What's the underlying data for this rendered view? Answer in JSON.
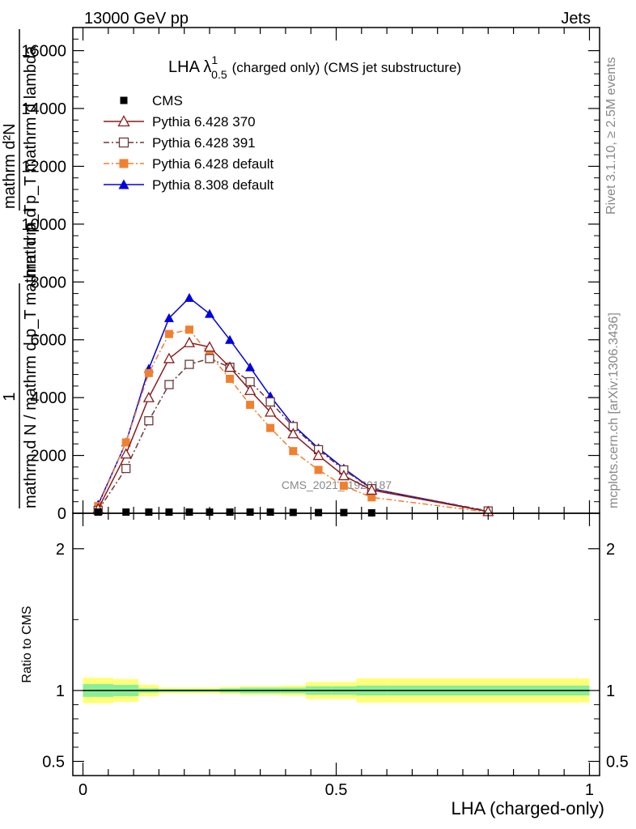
{
  "header": {
    "left": "13000 GeV pp",
    "right": "Jets",
    "side_top": "Rivet 3.1.10, ≥ 2.5M events",
    "side_bottom": "mcplots.cern.ch [arXiv:1306.3436]",
    "watermark": "CMS_2021_I1920187"
  },
  "chart_data": [
    {
      "type": "line",
      "panel": "main",
      "title_main": "LHA λ",
      "title_sup": "1",
      "title_sub": "0.5",
      "title_rest": "(charged only) (CMS jet substructure)",
      "xlabel": "LHA (charged-only)",
      "ylabel_num": "1",
      "ylabel_den": "mathrm d N / mathrm d p_T mathrm d p_T",
      "ylabel_right_num": "mathrm d²N",
      "ylabel_right_den": "mathrm d p_T mathrm d lambda",
      "xlim": [
        -0.02,
        1.02
      ],
      "ylim": [
        0,
        16800
      ],
      "y_ticks": [
        0,
        2000,
        4000,
        6000,
        8000,
        10000,
        12000,
        14000,
        16000
      ],
      "y_tick_labels": [
        "0",
        "2000",
        "4000",
        "6000",
        "8000",
        "10000",
        "12000",
        "14000",
        "16000"
      ],
      "legend_position": "top-left",
      "series": [
        {
          "name": "CMS",
          "color": "#000000",
          "marker": "square-filled",
          "dash": "none",
          "x": [
            0.03,
            0.085,
            0.13,
            0.17,
            0.21,
            0.25,
            0.29,
            0.33,
            0.37,
            0.415,
            0.465,
            0.515,
            0.57
          ],
          "y": [
            40,
            40,
            40,
            40,
            40,
            40,
            40,
            40,
            40,
            30,
            25,
            25,
            15
          ]
        },
        {
          "name": "Pythia 6.428 370",
          "color": "#8b1a1a",
          "marker": "triangle-open",
          "dash": "none",
          "x": [
            0.03,
            0.085,
            0.13,
            0.17,
            0.21,
            0.25,
            0.29,
            0.33,
            0.37,
            0.415,
            0.465,
            0.515,
            0.57,
            0.8
          ],
          "y": [
            150,
            2050,
            4000,
            5350,
            5900,
            5750,
            5050,
            4250,
            3500,
            2750,
            2000,
            1300,
            800,
            60
          ]
        },
        {
          "name": "Pythia 6.428 391",
          "color": "#6b3a3a",
          "marker": "square-open",
          "dash": "dashdot",
          "x": [
            0.03,
            0.085,
            0.13,
            0.17,
            0.21,
            0.25,
            0.29,
            0.33,
            0.37,
            0.415,
            0.465,
            0.515,
            0.57,
            0.8
          ],
          "y": [
            100,
            1550,
            3200,
            4450,
            5150,
            5350,
            5050,
            4550,
            3850,
            3000,
            2200,
            1500,
            850,
            80
          ]
        },
        {
          "name": "Pythia 6.428 default",
          "color": "#f08030",
          "marker": "square-filled",
          "dash": "dashdot",
          "x": [
            0.03,
            0.085,
            0.13,
            0.17,
            0.21,
            0.25,
            0.29,
            0.33,
            0.37,
            0.415,
            0.465,
            0.515,
            0.57,
            0.8
          ],
          "y": [
            250,
            2450,
            4850,
            6200,
            6350,
            5500,
            4650,
            3750,
            2950,
            2150,
            1500,
            950,
            550,
            40
          ]
        },
        {
          "name": "Pythia 8.308 default",
          "color": "#0000dd",
          "marker": "triangle-filled",
          "dash": "none",
          "x": [
            0.03,
            0.085,
            0.13,
            0.17,
            0.21,
            0.25,
            0.29,
            0.33,
            0.37,
            0.415,
            0.465,
            0.515,
            0.57,
            0.8
          ],
          "y": [
            300,
            2450,
            5000,
            6750,
            7450,
            6900,
            6000,
            5050,
            4050,
            3050,
            2250,
            1550,
            850,
            60
          ]
        }
      ]
    },
    {
      "type": "band",
      "panel": "ratio",
      "ylabel": "Ratio to CMS",
      "xlim": [
        -0.02,
        1.02
      ],
      "ylim": [
        0.4,
        2.25
      ],
      "y_ticks": [
        0.5,
        1,
        2
      ],
      "y_tick_labels": [
        "0.5",
        "1",
        "2"
      ],
      "x_ticks": [
        0,
        0.5,
        1
      ],
      "x_tick_labels": [
        "0",
        "0.5",
        "1"
      ],
      "reference": 1,
      "bins": [
        0,
        0.06,
        0.11,
        0.15,
        0.19,
        0.23,
        0.27,
        0.31,
        0.35,
        0.39,
        0.44,
        0.49,
        0.54,
        0.6,
        1.0
      ],
      "inner": [
        0.045,
        0.04,
        0.015,
        0.01,
        0.01,
        0.01,
        0.015,
        0.02,
        0.02,
        0.02,
        0.03,
        0.03,
        0.035,
        0.035
      ],
      "outer": [
        0.09,
        0.08,
        0.04,
        0.02,
        0.02,
        0.02,
        0.025,
        0.03,
        0.03,
        0.035,
        0.06,
        0.06,
        0.085,
        0.085
      ],
      "colors": {
        "inner": "#88ee99",
        "outer": "#ffff77"
      }
    }
  ]
}
